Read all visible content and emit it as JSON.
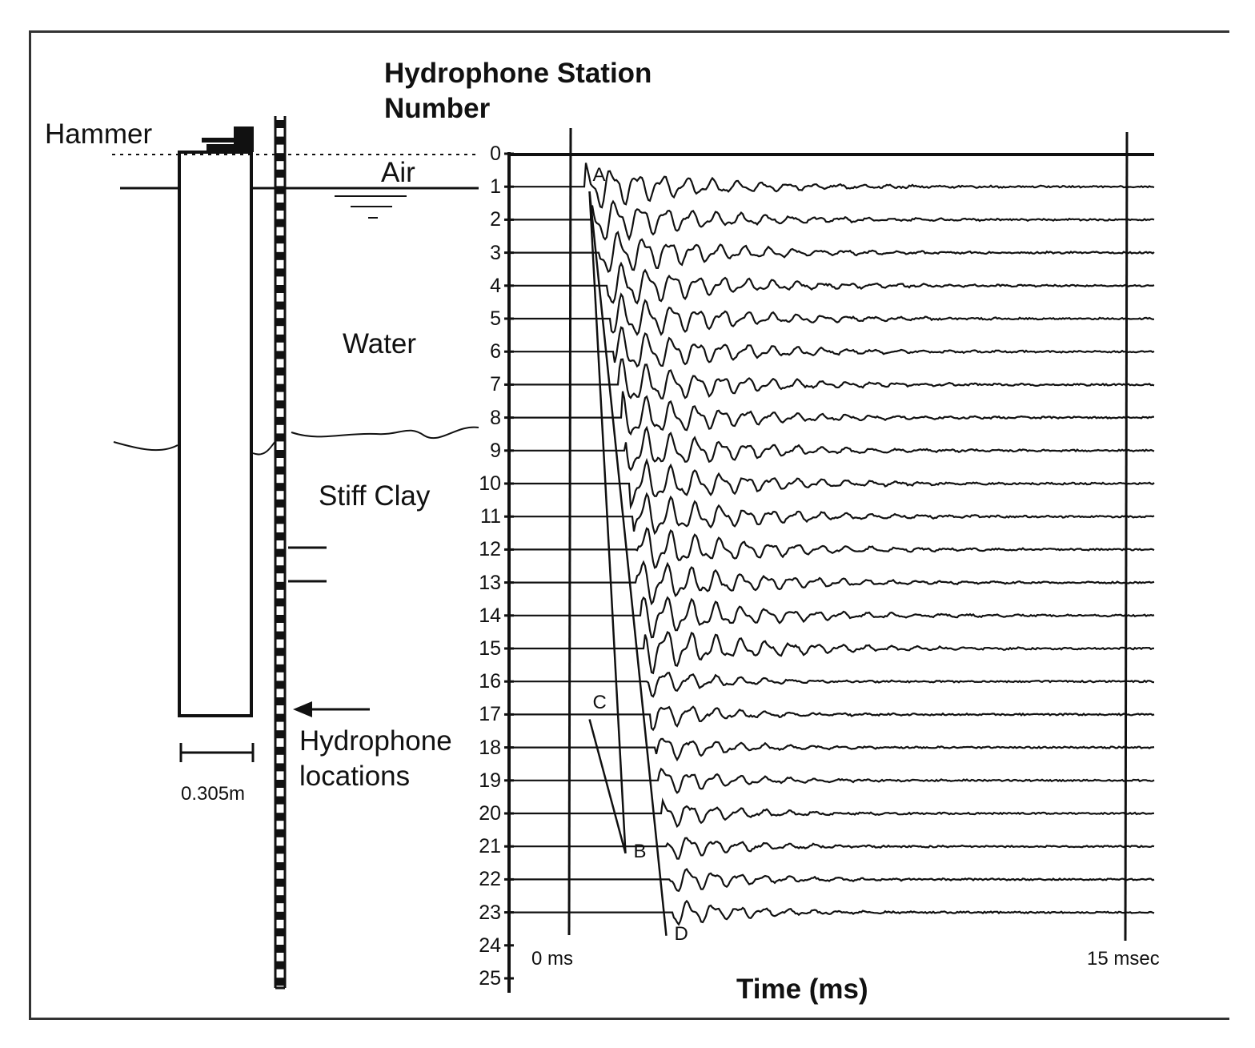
{
  "title": [
    "Hydrophone Station",
    "Number"
  ],
  "left_diagram": {
    "hammer_label": "Hammer",
    "air_label": "Air",
    "water_label": "Water",
    "clay_label": "Stiff Clay",
    "scale_label": "0.305m",
    "hydrophone_label": [
      "Hydrophone",
      "locations"
    ]
  },
  "chart_data": {
    "type": "line",
    "title": "Hydrophone Station Number",
    "xlabel": "Time (ms)",
    "x_tick_labels": [
      "0 ms",
      "15 msec"
    ],
    "xlim": [
      0,
      15
    ],
    "y_tick_labels": [
      "0",
      "1",
      "2",
      "3",
      "4",
      "5",
      "6",
      "7",
      "8",
      "9",
      "10",
      "11",
      "12",
      "13",
      "14",
      "15",
      "16",
      "17",
      "18",
      "19",
      "20",
      "21",
      "22",
      "23",
      "24",
      "25"
    ],
    "stations_with_traces": [
      1,
      2,
      3,
      4,
      5,
      6,
      7,
      8,
      9,
      10,
      11,
      12,
      13,
      14,
      15,
      16,
      17,
      18,
      19,
      20,
      21,
      22,
      23
    ],
    "first_arrival_ms": [
      0.4,
      0.6,
      0.8,
      1.0,
      1.1,
      1.2,
      1.3,
      1.4,
      1.5,
      1.6,
      1.7,
      1.8,
      1.8,
      1.9,
      2.0,
      2.1,
      2.2,
      2.3,
      2.4,
      2.5,
      2.6,
      2.7,
      2.8
    ],
    "annotations": [
      {
        "text": "A",
        "station": 1,
        "time_ms": 0.4
      },
      {
        "text": "C",
        "station": 17,
        "time_ms": 0.4
      },
      {
        "text": "B",
        "station": 21.5,
        "time_ms": 1.5
      },
      {
        "text": "D",
        "station": 24,
        "time_ms": 2.6
      }
    ]
  }
}
